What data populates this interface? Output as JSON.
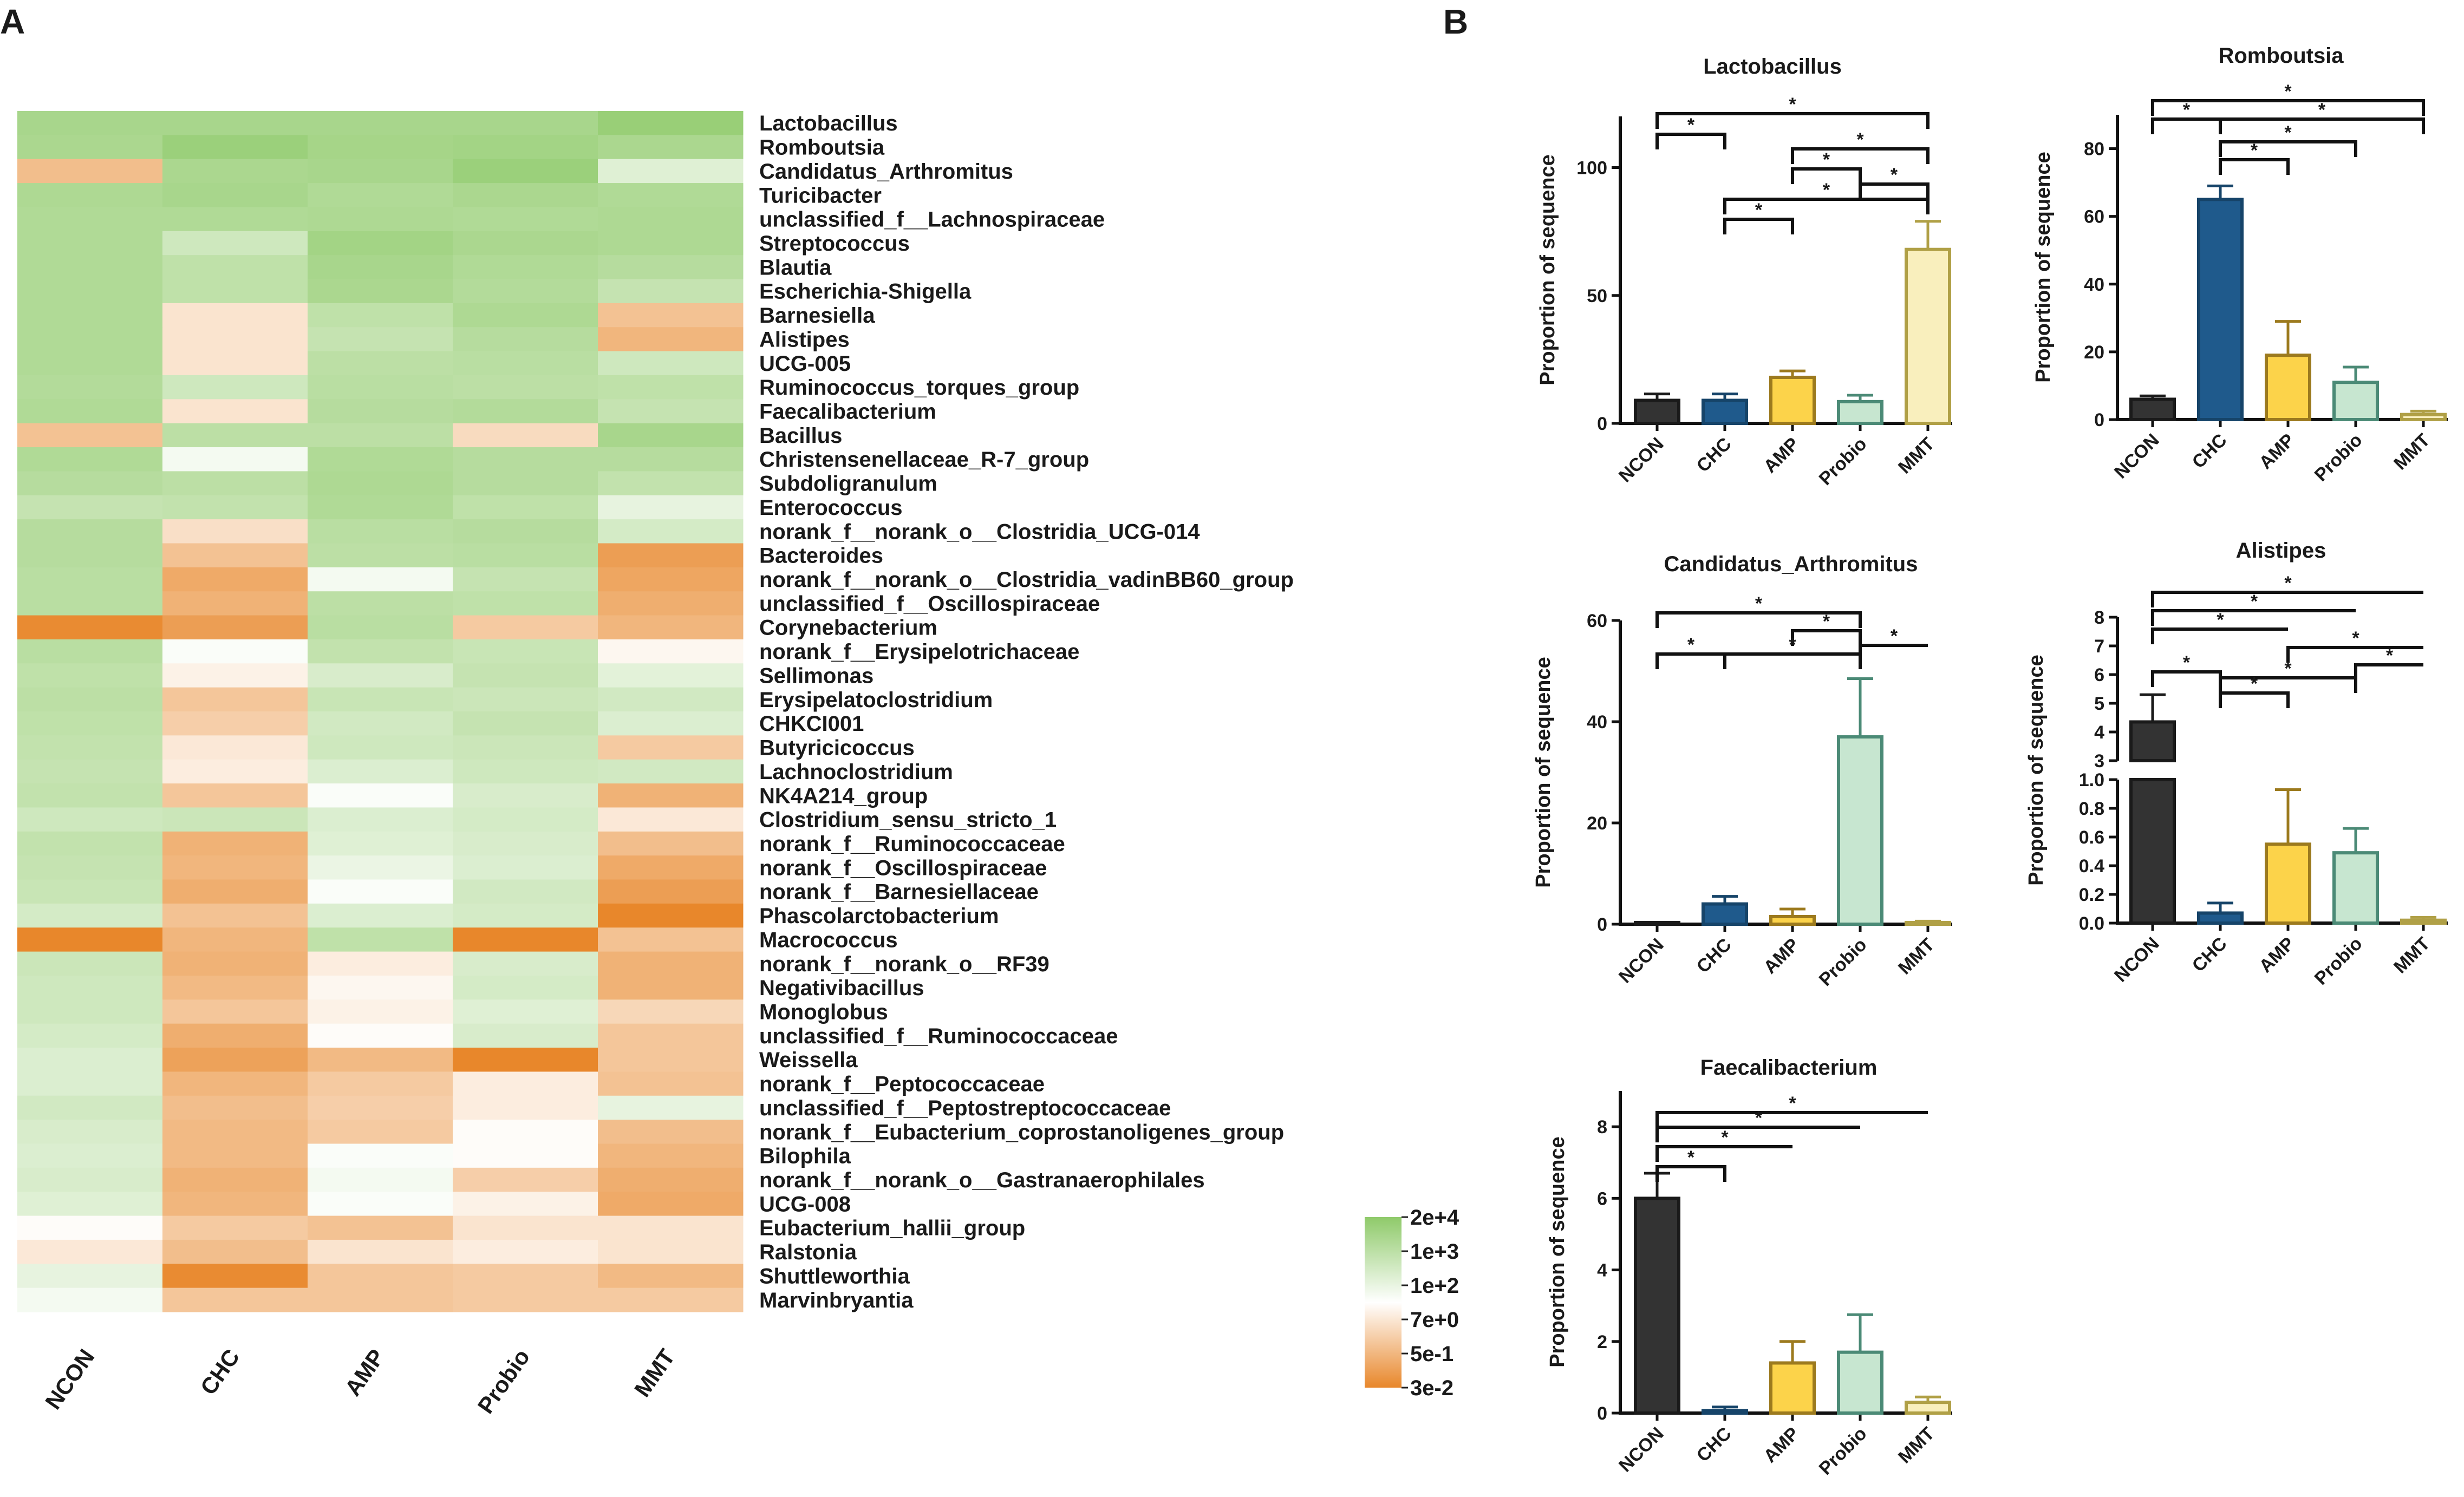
{
  "panel_labels": {
    "a": "A",
    "b": "B"
  },
  "chart_data": [
    {
      "type": "heatmap",
      "columns": [
        "NCON",
        "CHC",
        "AMP",
        "Probio",
        "MMT"
      ],
      "rows": [
        "Lactobacillus",
        "Romboutsia",
        "Candidatus_Arthromitus",
        "Turicibacter",
        "unclassified_f__Lachnospiraceae",
        "Streptococcus",
        "Blautia",
        "Escherichia-Shigella",
        "Barnesiella",
        "Alistipes",
        "UCG-005",
        "Ruminococcus_torques_group",
        "Faecalibacterium",
        "Bacillus",
        "Christensenellaceae_R-7_group",
        "Subdoligranulum",
        "Enterococcus",
        "norank_f__norank_o__Clostridia_UCG-014",
        "Bacteroides",
        "norank_f__norank_o__Clostridia_vadinBB60_group",
        "unclassified_f__Oscillospiraceae",
        "Corynebacterium",
        "norank_f__Erysipelotrichaceae",
        "Sellimonas",
        "Erysipelatoclostridium",
        "CHKCI001",
        "Butyricicoccus",
        "Lachnoclostridium",
        "NK4A214_group",
        "Clostridium_sensu_stricto_1",
        "norank_f__Ruminococcaceae",
        "norank_f__Oscillospiraceae",
        "norank_f__Barnesiellaceae",
        "Phascolarctobacterium",
        "Macrococcus",
        "norank_f__norank_o__RF39",
        "Negativibacillus",
        "Monoglobus",
        "unclassified_f__Ruminococcaceae",
        "Weissella",
        "norank_f__Peptococcaceae",
        "unclassified_f__Peptostreptococcaceae",
        "norank_f__Eubacterium_coprostanoligenes_group",
        "Bilophila",
        "norank_f__norank_o__Gastranaerophilales",
        "UCG-008",
        "Eubacterium_hallii_group",
        "Ralstonia",
        "Shuttleworthia",
        "Marvinbryantia"
      ],
      "values_log10": [
        [
          3.3,
          3.3,
          3.3,
          3.3,
          3.9
        ],
        [
          3.2,
          3.8,
          3.4,
          3.5,
          3.2
        ],
        [
          -0.6,
          3.2,
          3.3,
          3.8,
          1.5
        ],
        [
          3.1,
          3.3,
          3.0,
          3.2,
          3.0
        ],
        [
          3.0,
          3.0,
          3.1,
          3.0,
          3.1
        ],
        [
          3.0,
          2.0,
          3.5,
          3.2,
          3.1
        ],
        [
          3.0,
          2.5,
          3.3,
          3.0,
          2.8
        ],
        [
          3.0,
          2.5,
          3.2,
          2.9,
          2.3
        ],
        [
          3.0,
          0.3,
          2.5,
          3.1,
          -0.5
        ],
        [
          3.0,
          0.3,
          2.3,
          2.8,
          -0.8
        ],
        [
          3.0,
          0.3,
          2.6,
          2.7,
          2.0
        ],
        [
          2.9,
          2.0,
          2.7,
          2.6,
          2.5
        ],
        [
          3.0,
          0.3,
          2.8,
          2.9,
          2.3
        ],
        [
          -0.5,
          2.6,
          2.6,
          0.1,
          3.3
        ],
        [
          3.0,
          1.0,
          3.0,
          2.8,
          2.8
        ],
        [
          2.8,
          2.6,
          3.1,
          2.8,
          2.4
        ],
        [
          2.3,
          2.4,
          3.0,
          2.5,
          1.3
        ],
        [
          2.8,
          0.2,
          2.7,
          2.8,
          1.8
        ],
        [
          2.8,
          -0.5,
          2.6,
          2.7,
          -1.4
        ],
        [
          2.7,
          -1.1,
          1.0,
          2.3,
          -1.2
        ],
        [
          2.7,
          -0.9,
          2.6,
          2.5,
          -1.0
        ],
        [
          -1.9,
          -1.4,
          2.7,
          -0.3,
          -0.8
        ],
        [
          2.7,
          0.9,
          2.4,
          2.2,
          0.7
        ],
        [
          2.5,
          0.6,
          1.7,
          2.3,
          1.4
        ],
        [
          2.6,
          -0.4,
          2.2,
          2.1,
          1.9
        ],
        [
          2.5,
          -0.2,
          1.9,
          2.3,
          1.6
        ],
        [
          2.4,
          0.4,
          2.0,
          2.1,
          -0.3
        ],
        [
          2.3,
          0.5,
          1.6,
          2.0,
          1.9
        ],
        [
          2.4,
          -0.4,
          0.9,
          1.7,
          -0.9
        ],
        [
          2.0,
          2.1,
          1.6,
          1.8,
          0.4
        ],
        [
          2.4,
          -0.9,
          1.5,
          1.7,
          -0.6
        ],
        [
          2.3,
          -0.8,
          1.2,
          1.6,
          -1.1
        ],
        [
          2.2,
          -1.0,
          0.9,
          1.9,
          -1.4
        ],
        [
          1.8,
          -0.5,
          1.6,
          1.8,
          -2.0
        ],
        [
          -2.0,
          -0.8,
          2.5,
          -2.0,
          -0.5
        ],
        [
          2.1,
          -0.9,
          0.5,
          1.7,
          -0.9
        ],
        [
          2.0,
          -0.7,
          0.7,
          1.8,
          -0.9
        ],
        [
          2.0,
          -0.4,
          0.6,
          1.5,
          0.0
        ],
        [
          1.8,
          -1.0,
          0.8,
          1.7,
          -0.4
        ],
        [
          1.6,
          -1.3,
          -0.7,
          -2.0,
          -0.4
        ],
        [
          1.6,
          -0.8,
          -0.3,
          0.5,
          -0.5
        ],
        [
          1.9,
          -0.6,
          -0.2,
          0.5,
          1.3
        ],
        [
          1.7,
          -0.7,
          -0.3,
          0.8,
          -0.6
        ],
        [
          1.6,
          -0.7,
          0.9,
          0.8,
          -0.8
        ],
        [
          1.7,
          -0.9,
          1.0,
          -0.2,
          -1.0
        ],
        [
          1.5,
          -0.8,
          0.9,
          0.6,
          -1.1
        ],
        [
          0.8,
          -0.3,
          -0.5,
          0.3,
          0.3
        ],
        [
          0.4,
          -0.6,
          0.3,
          0.5,
          0.3
        ],
        [
          1.3,
          -1.9,
          -0.4,
          -0.3,
          -0.7
        ],
        [
          1.0,
          -0.4,
          -0.4,
          -0.3,
          -0.3
        ]
      ],
      "legend": {
        "labels": [
          "2e+4",
          "1e+3",
          "1e+2",
          "7e+0",
          "5e-1",
          "3e-2"
        ],
        "colors": {
          "high": "#8fca6a",
          "mid": "#ffffff",
          "low": "#e8872b"
        }
      }
    },
    {
      "type": "bar",
      "title": "Lactobacillus",
      "ylabel": "Proportion of sequence",
      "categories": [
        "NCON",
        "CHC",
        "AMP",
        "Probio",
        "MMT"
      ],
      "values": [
        9,
        9,
        18,
        8.5,
        68
      ],
      "errors": [
        2.5,
        2.5,
        2.5,
        2.5,
        11
      ],
      "ylim": [
        0,
        120
      ],
      "yticks": [
        "0",
        "50",
        "100"
      ],
      "significance": [
        "*",
        "*",
        "*",
        "*",
        "*",
        "*",
        "*"
      ]
    },
    {
      "type": "bar",
      "title": "Romboutsia",
      "ylabel": "Proportion of sequence",
      "categories": [
        "NCON",
        "CHC",
        "AMP",
        "Probio",
        "MMT"
      ],
      "values": [
        6,
        65,
        19,
        11,
        1.5
      ],
      "errors": [
        1,
        4,
        10,
        4.5,
        1
      ],
      "ylim": [
        0,
        90
      ],
      "yticks": [
        "0",
        "20",
        "40",
        "60",
        "80"
      ],
      "significance": [
        "*",
        "*",
        "*",
        "*",
        "*"
      ]
    },
    {
      "type": "bar",
      "title": "Candidatus_Arthromitus",
      "ylabel": "Proportion of sequence",
      "categories": [
        "NCON",
        "CHC",
        "AMP",
        "Probio",
        "MMT"
      ],
      "values": [
        0,
        4,
        1.5,
        37,
        0.3
      ],
      "errors": [
        0,
        1.5,
        1.5,
        11.5,
        0.3
      ],
      "ylim": [
        0,
        60
      ],
      "yticks": [
        "0",
        "20",
        "40",
        "60"
      ],
      "significance": [
        "*",
        "*",
        "*",
        "*",
        "*"
      ]
    },
    {
      "type": "bar",
      "title": "Alistipes",
      "ylabel": "Proportion of sequence",
      "categories": [
        "NCON",
        "CHC",
        "AMP",
        "Probio",
        "MMT"
      ],
      "values": [
        4.35,
        0.07,
        0.55,
        0.49,
        0.02
      ],
      "errors": [
        0.95,
        0.07,
        0.38,
        0.17,
        0.02
      ],
      "axis_break": [
        1.0,
        3.0
      ],
      "yticks_lower": [
        "0.0",
        "0.2",
        "0.4",
        "0.6",
        "0.8",
        "1.0"
      ],
      "yticks_upper": [
        "3",
        "4",
        "5",
        "6",
        "7",
        "8"
      ],
      "significance": [
        "*",
        "*",
        "*",
        "*",
        "*",
        "*",
        "*",
        "*",
        "*"
      ]
    },
    {
      "type": "bar",
      "title": "Faecalibacterium",
      "ylabel": "Proportion of sequence",
      "categories": [
        "NCON",
        "CHC",
        "AMP",
        "Probio",
        "MMT"
      ],
      "values": [
        6.0,
        0.07,
        1.4,
        1.7,
        0.3
      ],
      "errors": [
        0.7,
        0.1,
        0.6,
        1.05,
        0.15
      ],
      "ylim": [
        0,
        9
      ],
      "yticks": [
        "0",
        "2",
        "4",
        "6",
        "8"
      ],
      "significance": [
        "*",
        "*",
        "*",
        "*"
      ]
    }
  ],
  "colors": {
    "NCON_fill": "#333333",
    "NCON_edge": "#1a1a1a",
    "CHC_fill": "#1f5a8c",
    "CHC_edge": "#164469",
    "AMP_fill": "#fcd34a",
    "AMP_edge": "#9c7a1e",
    "Probio_fill": "#c7e6d0",
    "Probio_edge": "#4b8a76",
    "MMT_fill": "#f9efbd",
    "MMT_edge": "#b0a046"
  }
}
